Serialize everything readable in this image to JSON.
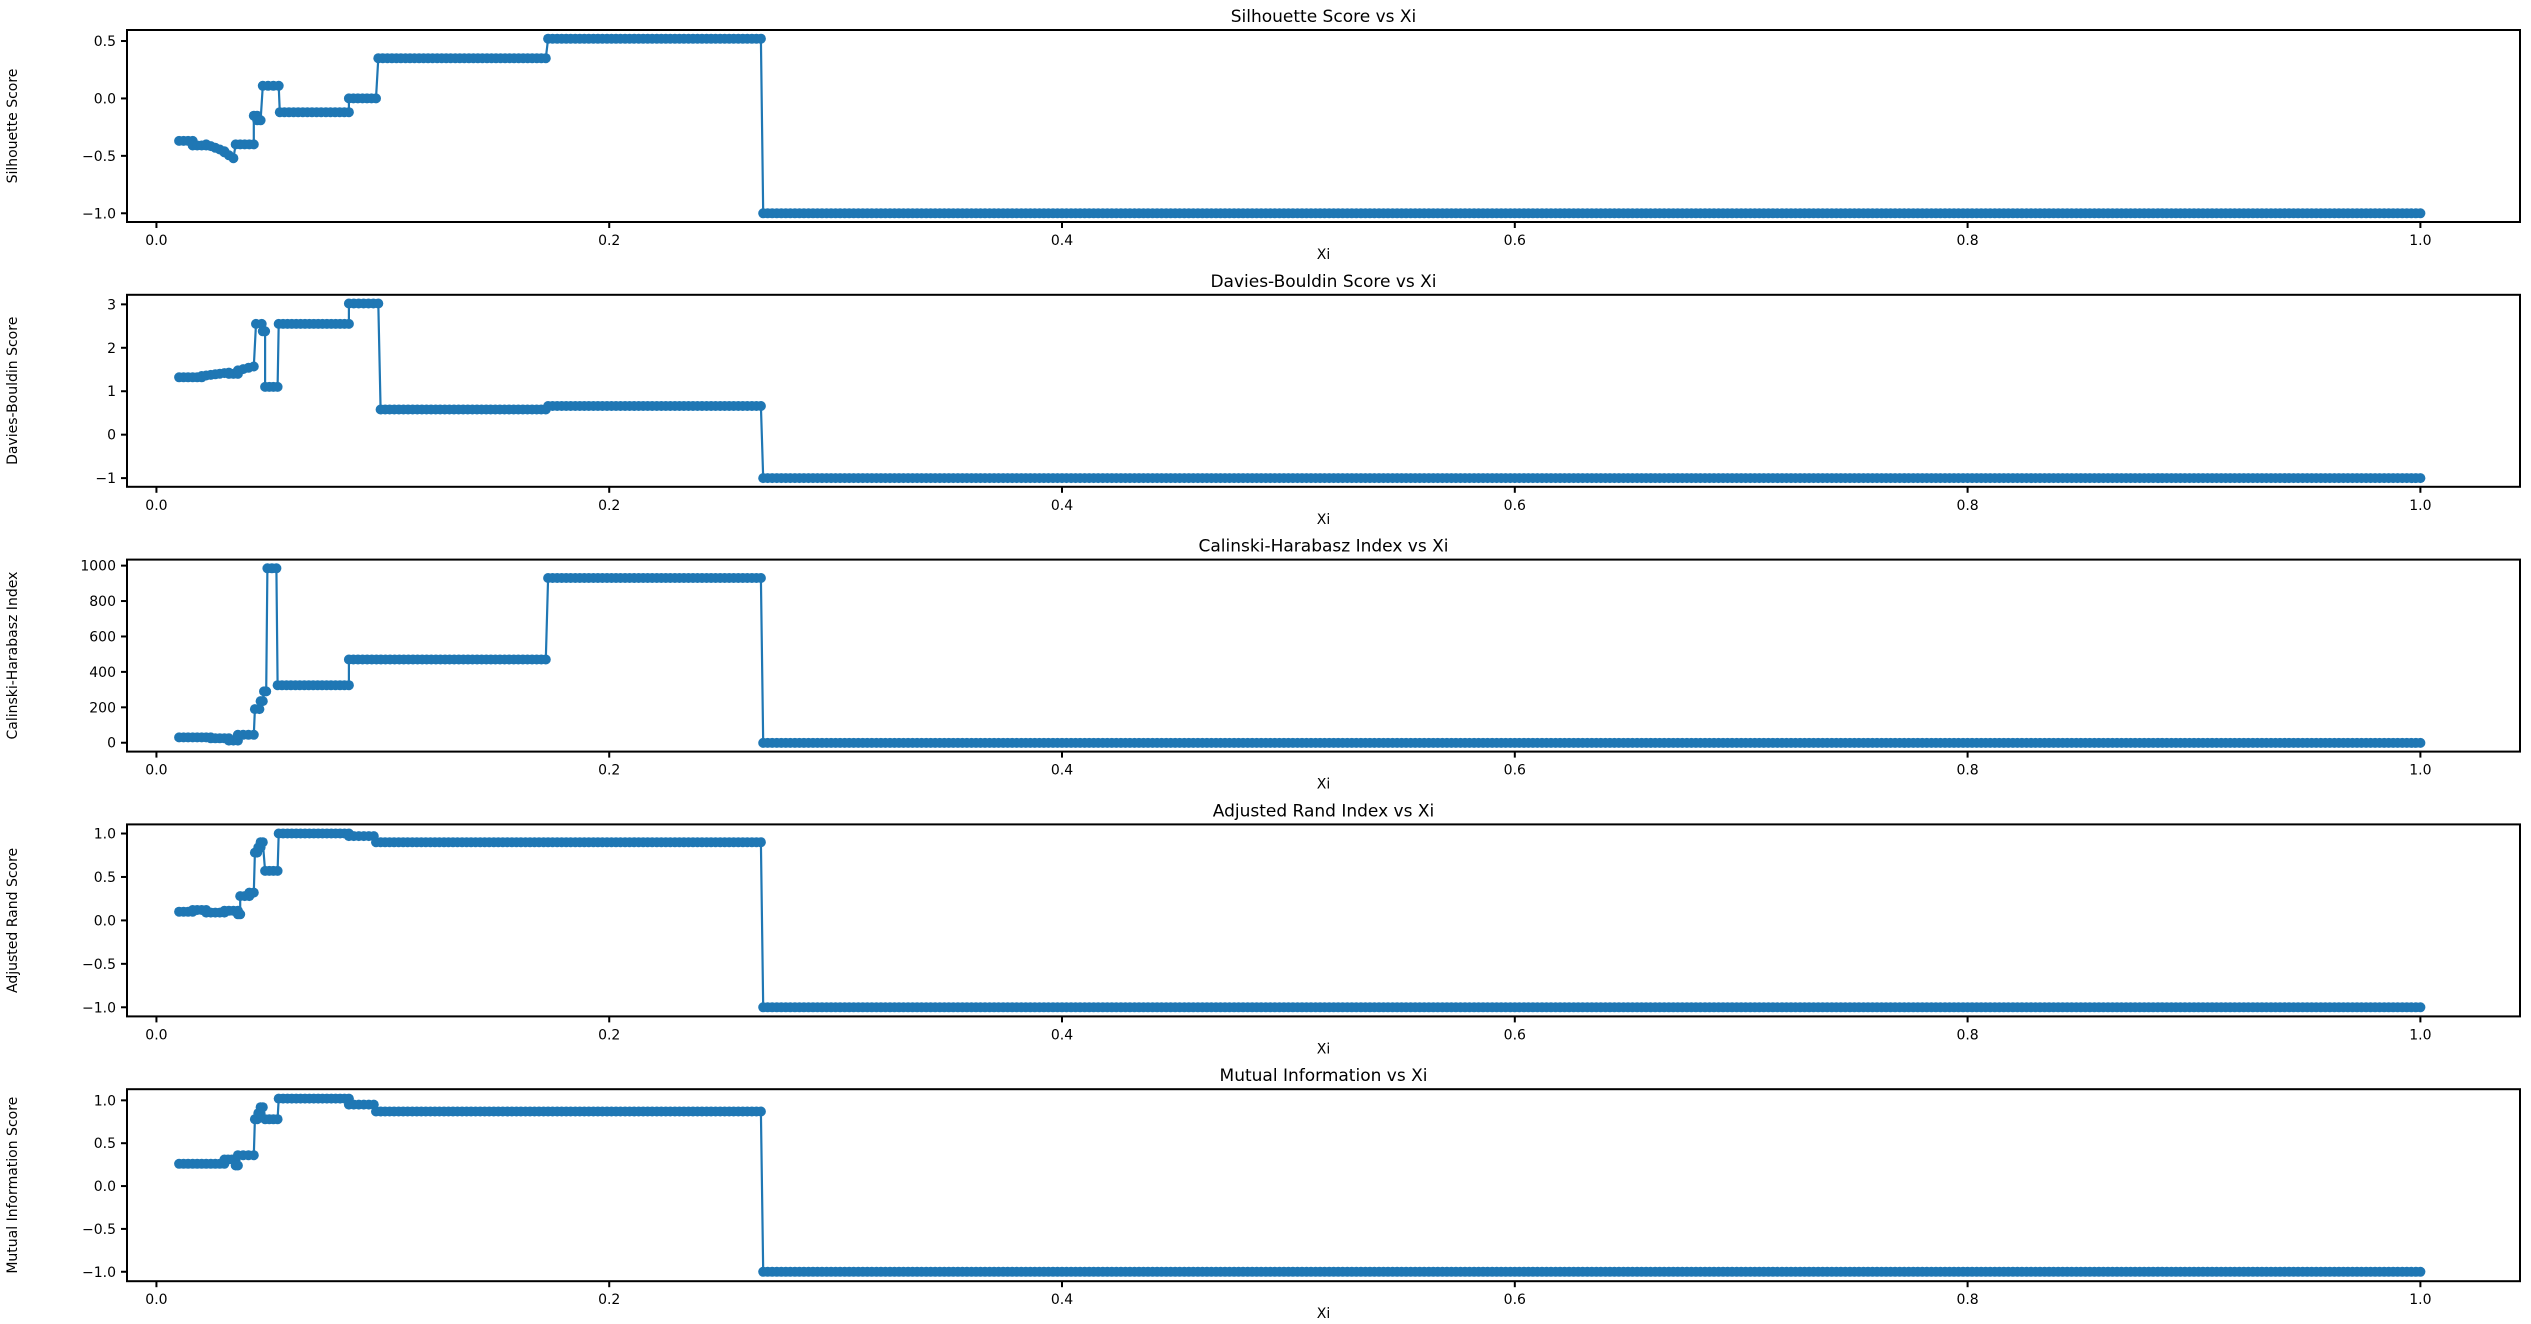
{
  "figure": {
    "background": "#ffffff",
    "line_color": "#1f77b4",
    "text_color": "#000000",
    "xlabel": "Xi",
    "xlim": [
      -0.013,
      1.044
    ],
    "x_ticks": [
      {
        "v": 0.0,
        "label": "0.0"
      },
      {
        "v": 0.2,
        "label": "0.2"
      },
      {
        "v": 0.4,
        "label": "0.4"
      },
      {
        "v": 0.6,
        "label": "0.6"
      },
      {
        "v": 0.8,
        "label": "0.8"
      },
      {
        "v": 1.0,
        "label": "1.0"
      }
    ],
    "sample_step": 0.002
  },
  "chart_data": [
    {
      "type": "line",
      "title": "Silhouette Score vs Xi",
      "xlabel": "Xi",
      "ylabel": "Silhouette Score",
      "ylim": [
        -1.076,
        0.596
      ],
      "y_ticks": [
        {
          "v": 0.5,
          "label": "0.5"
        },
        {
          "v": 0.0,
          "label": "0.0"
        },
        {
          "v": -0.5,
          "label": "−0.5"
        },
        {
          "v": -1.0,
          "label": "−1.0"
        }
      ],
      "grid": false,
      "legend": null,
      "segments": [
        [
          0.01,
          0.016,
          -0.37,
          -0.37
        ],
        [
          0.016,
          0.022,
          -0.41,
          -0.41
        ],
        [
          0.022,
          0.03,
          -0.4,
          -0.46
        ],
        [
          0.03,
          0.034,
          -0.47,
          -0.52
        ],
        [
          0.035,
          0.043,
          -0.4,
          -0.4
        ],
        [
          0.043,
          0.0445,
          -0.15,
          -0.15
        ],
        [
          0.0445,
          0.046,
          -0.19,
          -0.19
        ],
        [
          0.047,
          0.054,
          0.11,
          0.11
        ],
        [
          0.0545,
          0.085,
          -0.12,
          -0.12
        ],
        [
          0.085,
          0.097,
          0.0,
          0.0
        ],
        [
          0.098,
          0.172,
          0.35,
          0.35
        ],
        [
          0.173,
          0.267,
          0.52,
          0.52
        ],
        [
          0.268,
          1.0,
          -1.0,
          -1.0
        ]
      ]
    },
    {
      "type": "line",
      "title": "Davies-Bouldin Score vs Xi",
      "xlabel": "Xi",
      "ylabel": "Davies-Bouldin Score",
      "ylim": [
        -1.2,
        3.22
      ],
      "y_ticks": [
        {
          "v": 3,
          "label": "3"
        },
        {
          "v": 2,
          "label": "2"
        },
        {
          "v": 1,
          "label": "1"
        },
        {
          "v": 0,
          "label": "0"
        },
        {
          "v": -1,
          "label": "−1"
        }
      ],
      "grid": false,
      "legend": null,
      "segments": [
        [
          0.01,
          0.02,
          1.32,
          1.32
        ],
        [
          0.02,
          0.032,
          1.35,
          1.43
        ],
        [
          0.032,
          0.036,
          1.4,
          1.4
        ],
        [
          0.036,
          0.043,
          1.48,
          1.57
        ],
        [
          0.044,
          0.0465,
          2.55,
          2.55
        ],
        [
          0.047,
          0.048,
          2.38,
          2.38
        ],
        [
          0.048,
          0.0535,
          1.1,
          1.1
        ],
        [
          0.054,
          0.085,
          2.55,
          2.55
        ],
        [
          0.085,
          0.098,
          3.02,
          3.02
        ],
        [
          0.099,
          0.172,
          0.58,
          0.58
        ],
        [
          0.173,
          0.267,
          0.66,
          0.66
        ],
        [
          0.268,
          1.0,
          -1.0,
          -1.0
        ]
      ]
    },
    {
      "type": "line",
      "title": "Calinski-Harabasz Index vs Xi",
      "xlabel": "Xi",
      "ylabel": "Calinski-Harabasz Index",
      "ylim": [
        -50,
        1034
      ],
      "y_ticks": [
        {
          "v": 1000,
          "label": "1000"
        },
        {
          "v": 800,
          "label": "800"
        },
        {
          "v": 600,
          "label": "600"
        },
        {
          "v": 400,
          "label": "400"
        },
        {
          "v": 200,
          "label": "200"
        },
        {
          "v": 0,
          "label": "0"
        }
      ],
      "grid": false,
      "legend": null,
      "segments": [
        [
          0.01,
          0.024,
          30,
          30
        ],
        [
          0.024,
          0.032,
          25,
          25
        ],
        [
          0.032,
          0.036,
          12,
          12
        ],
        [
          0.036,
          0.043,
          45,
          45
        ],
        [
          0.0435,
          0.0455,
          190,
          190
        ],
        [
          0.046,
          0.047,
          235,
          235
        ],
        [
          0.0475,
          0.0485,
          290,
          290
        ],
        [
          0.049,
          0.053,
          985,
          985
        ],
        [
          0.0535,
          0.085,
          325,
          325
        ],
        [
          0.085,
          0.172,
          470,
          470
        ],
        [
          0.173,
          0.267,
          930,
          930
        ],
        [
          0.268,
          1.0,
          -1,
          -1
        ]
      ]
    },
    {
      "type": "line",
      "title": "Adjusted Rand Index vs Xi",
      "xlabel": "Xi",
      "ylabel": "Adjusted Rand Score",
      "ylim": [
        -1.105,
        1.105
      ],
      "y_ticks": [
        {
          "v": 1.0,
          "label": "1.0"
        },
        {
          "v": 0.5,
          "label": "0.5"
        },
        {
          "v": 0.0,
          "label": "0.0"
        },
        {
          "v": -0.5,
          "label": "−0.5"
        },
        {
          "v": -1.0,
          "label": "−1.0"
        }
      ],
      "grid": false,
      "legend": null,
      "segments": [
        [
          0.01,
          0.016,
          0.1,
          0.1
        ],
        [
          0.016,
          0.022,
          0.12,
          0.12
        ],
        [
          0.022,
          0.03,
          0.09,
          0.09
        ],
        [
          0.03,
          0.036,
          0.11,
          0.11
        ],
        [
          0.036,
          0.037,
          0.07,
          0.07
        ],
        [
          0.037,
          0.041,
          0.28,
          0.28
        ],
        [
          0.041,
          0.043,
          0.32,
          0.32
        ],
        [
          0.0435,
          0.0445,
          0.78,
          0.78
        ],
        [
          0.045,
          0.046,
          0.84,
          0.84
        ],
        [
          0.046,
          0.047,
          0.9,
          0.9
        ],
        [
          0.048,
          0.0535,
          0.57,
          0.57
        ],
        [
          0.054,
          0.085,
          1.0,
          1.0
        ],
        [
          0.085,
          0.096,
          0.97,
          0.97
        ],
        [
          0.097,
          0.267,
          0.9,
          0.9
        ],
        [
          0.268,
          1.0,
          -1.0,
          -1.0
        ]
      ]
    },
    {
      "type": "line",
      "title": "Mutual Information vs Xi",
      "xlabel": "Xi",
      "ylabel": "Mutual Information Score",
      "ylim": [
        -1.11,
        1.13
      ],
      "y_ticks": [
        {
          "v": 1.0,
          "label": "1.0"
        },
        {
          "v": 0.5,
          "label": "0.5"
        },
        {
          "v": 0.0,
          "label": "0.0"
        },
        {
          "v": -0.5,
          "label": "−0.5"
        },
        {
          "v": -1.0,
          "label": "−1.0"
        }
      ],
      "grid": false,
      "legend": null,
      "segments": [
        [
          0.01,
          0.03,
          0.26,
          0.26
        ],
        [
          0.03,
          0.035,
          0.31,
          0.31
        ],
        [
          0.035,
          0.036,
          0.24,
          0.24
        ],
        [
          0.036,
          0.043,
          0.36,
          0.36
        ],
        [
          0.0435,
          0.0445,
          0.78,
          0.78
        ],
        [
          0.045,
          0.046,
          0.85,
          0.85
        ],
        [
          0.046,
          0.047,
          0.92,
          0.92
        ],
        [
          0.048,
          0.0535,
          0.78,
          0.78
        ],
        [
          0.054,
          0.085,
          1.02,
          1.02
        ],
        [
          0.085,
          0.096,
          0.95,
          0.95
        ],
        [
          0.097,
          0.267,
          0.87,
          0.87
        ],
        [
          0.268,
          1.0,
          -1.0,
          -1.0
        ]
      ]
    }
  ]
}
